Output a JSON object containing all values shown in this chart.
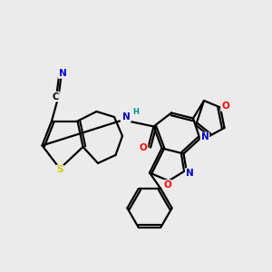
{
  "background_color": "#ebebeb",
  "atom_colors": {
    "C": "#000000",
    "N": "#0000cd",
    "O": "#ff0000",
    "S": "#cccc00",
    "H": "#009090"
  },
  "figsize": [
    3.0,
    3.0
  ],
  "dpi": 100
}
